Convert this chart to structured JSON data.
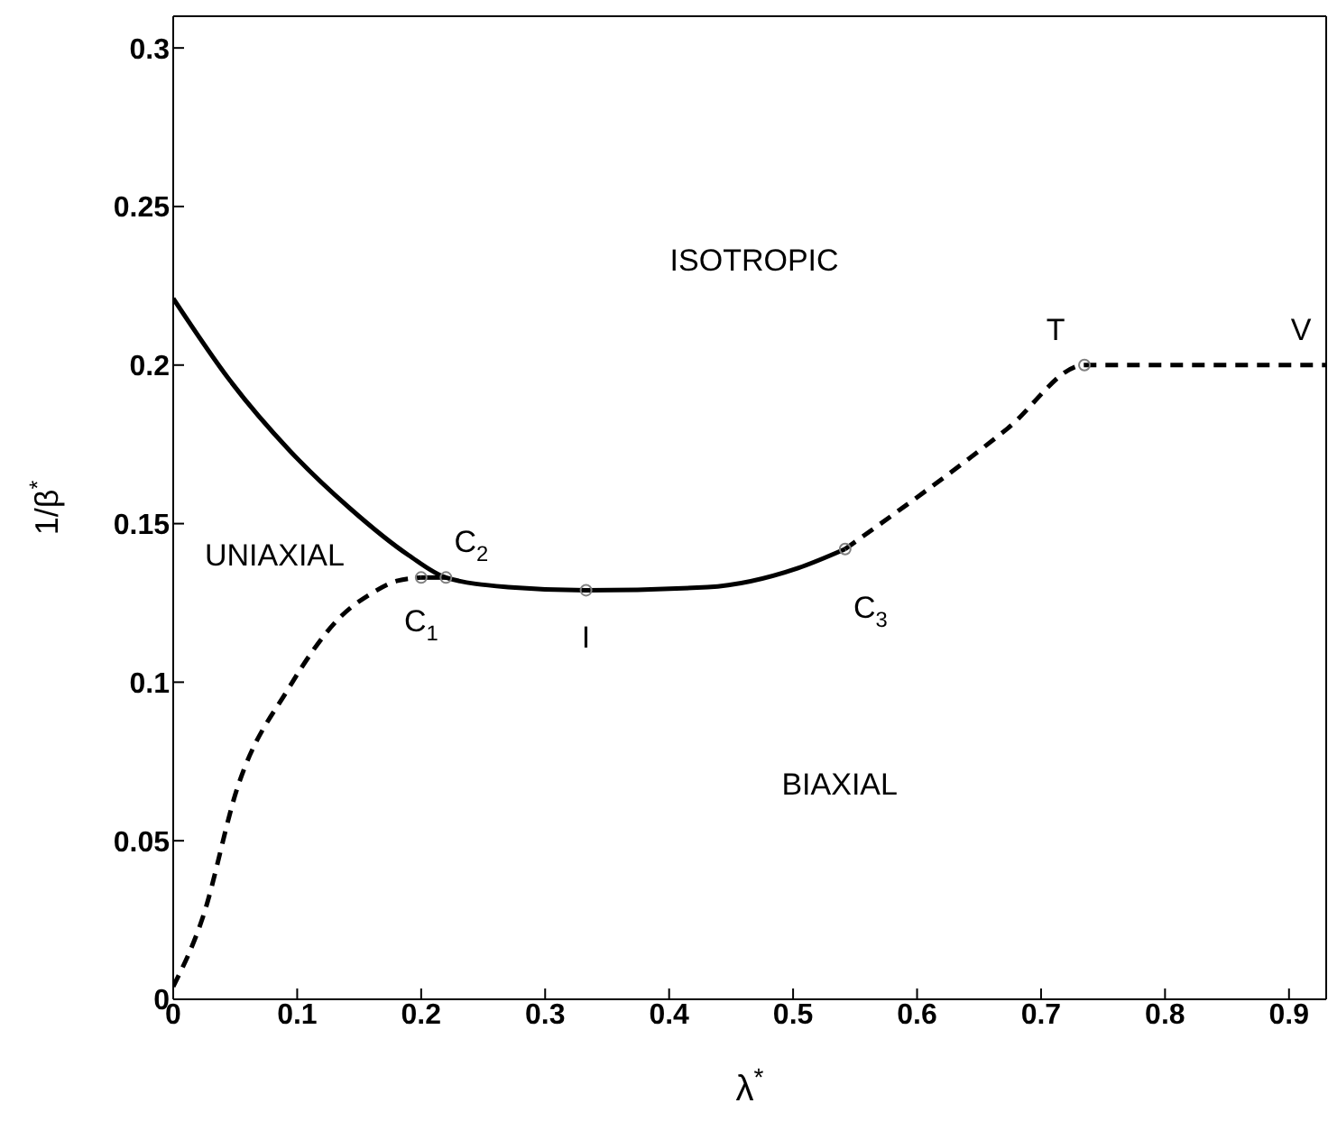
{
  "chart_data": {
    "type": "line",
    "xlabel": "λ$^{*}$",
    "ylabel": "1/β$^{*}$",
    "xlim": [
      0,
      0.93
    ],
    "ylim": [
      0,
      0.31
    ],
    "xticks": [
      0,
      0.1,
      0.2,
      0.3,
      0.4,
      0.5,
      0.6,
      0.7,
      0.8,
      0.9
    ],
    "yticks": [
      0,
      0.05,
      0.1,
      0.15,
      0.2,
      0.25,
      0.3
    ],
    "series": [
      {
        "color": "#000000",
        "line_style": "solid",
        "marker": "none",
        "x": [
          0,
          0.046,
          0.094,
          0.142,
          0.19,
          0.22,
          0.27,
          0.333,
          0.431,
          0.504,
          0.542
        ],
        "values": [
          0.221,
          0.195,
          0.173,
          0.155,
          0.14,
          0.133,
          0.13,
          0.129,
          0.13,
          0.136,
          0.142
        ]
      },
      {
        "color": "#000000",
        "line_style": "solid",
        "marker": "none",
        "x": [
          0.2,
          0.22
        ],
        "values": [
          0.133,
          0.133
        ]
      },
      {
        "color": "#000000",
        "line_style": "dashed",
        "marker": "none",
        "x": [
          0,
          0.024,
          0.052,
          0.093,
          0.136,
          0.16,
          0.181,
          0.2
        ],
        "values": [
          0.004,
          0.026,
          0.067,
          0.098,
          0.121,
          0.128,
          0.132,
          0.133
        ]
      },
      {
        "color": "#000000",
        "line_style": "dashed",
        "marker": "none",
        "x": [
          0.542,
          0.673,
          0.735,
          0.93
        ],
        "values": [
          0.142,
          0.18,
          0.2,
          0.2
        ]
      },
      {
        "type": "scatter",
        "color": "#808080",
        "marker": "circle",
        "x": [
          0.2,
          0.22,
          0.333,
          0.542,
          0.735
        ],
        "values": [
          0.133,
          0.133,
          0.129,
          0.142,
          0.2
        ]
      }
    ],
    "annotations": [
      "ISOTROPIC",
      "UNIAXIAL",
      "BIAXIAL",
      {
        "text": "C$_{1}$",
        "x": 0.2,
        "y": 0.133
      },
      {
        "text": "C$_{2}$",
        "x": 0.22,
        "y": 0.133
      },
      {
        "text": "I",
        "x": 0.333,
        "y": 0.129
      },
      {
        "text": "C$_{3}$",
        "x": 0.542,
        "y": 0.142
      },
      {
        "text": "T",
        "x": 0.735,
        "y": 0.2
      },
      {
        "text": "V",
        "x": 0.93,
        "y": 0.2
      }
    ]
  }
}
